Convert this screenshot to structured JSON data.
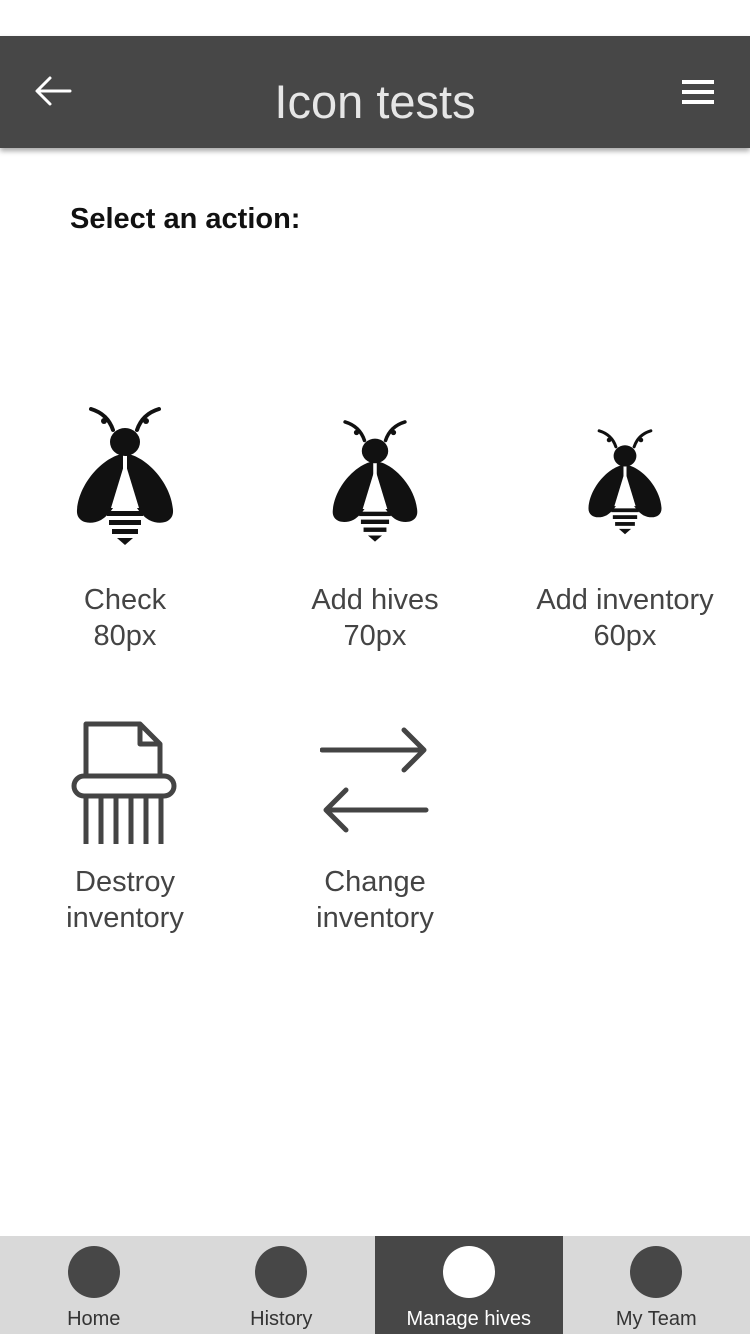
{
  "header": {
    "title": "Icon tests",
    "back_icon": "arrow-left-icon",
    "menu_icon": "hamburger-menu-icon"
  },
  "prompt": "Select an action:",
  "actions": [
    {
      "line1": "Check",
      "line2": "80px",
      "icon": "bee-icon"
    },
    {
      "line1": "Add hives",
      "line2": "70px",
      "icon": "bee-icon"
    },
    {
      "line1": "Add inventory",
      "line2": "60px",
      "icon": "bee-icon"
    },
    {
      "line1": "Destroy",
      "line2": "inventory",
      "icon": "paper-shredder-icon"
    },
    {
      "line1": "Change",
      "line2": "inventory",
      "icon": "swap-arrows-icon"
    }
  ],
  "bottom_nav": {
    "items": [
      {
        "label": "Home",
        "active": false
      },
      {
        "label": "History",
        "active": false
      },
      {
        "label": "Manage hives",
        "active": true
      },
      {
        "label": "My Team",
        "active": false
      }
    ]
  },
  "colors": {
    "app_bar": "#474747",
    "nav_bg": "#d9d9d9",
    "nav_active": "#474747",
    "icon": "#111111",
    "label": "#444444"
  }
}
